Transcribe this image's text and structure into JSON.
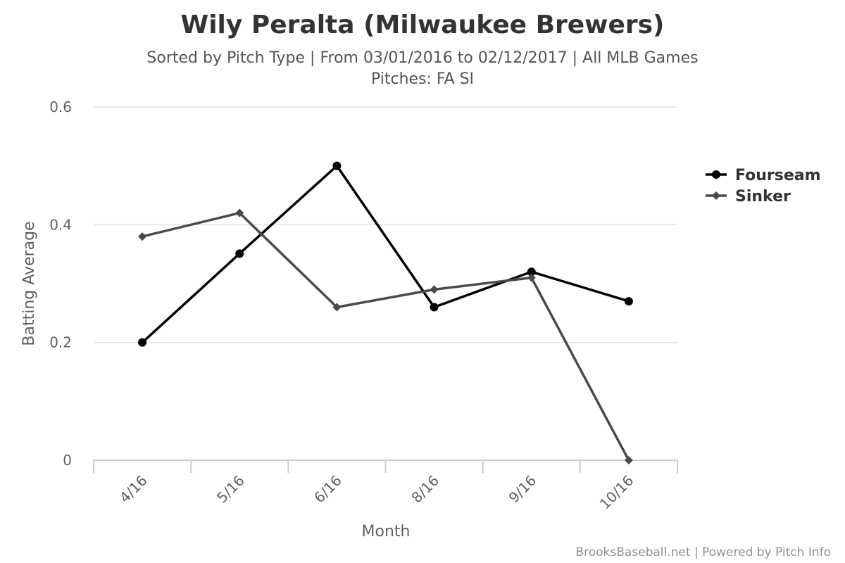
{
  "chart_data": {
    "type": "line",
    "title": "Wily Peralta (Milwaukee Brewers)",
    "subtitle_lines": [
      "Sorted by Pitch Type | From 03/01/2016 to 02/12/2017 | All MLB Games",
      "Pitches: FA SI"
    ],
    "xlabel": "Month",
    "ylabel": "Batting Average",
    "categories": [
      "4/16",
      "5/16",
      "6/16",
      "8/16",
      "9/16",
      "10/16"
    ],
    "y_ticks": [
      "0",
      "0.2",
      "0.4",
      "0.6"
    ],
    "ylim": [
      0,
      0.6
    ],
    "grid": true,
    "legend_position": "right",
    "series": [
      {
        "name": "Fourseam",
        "color": "#000000",
        "marker": "circle",
        "values": [
          0.2,
          0.351,
          0.5,
          0.26,
          0.32,
          0.27
        ]
      },
      {
        "name": "Sinker",
        "color": "#4a4a4a",
        "marker": "diamond",
        "values": [
          0.38,
          0.42,
          0.26,
          0.29,
          0.31,
          0.0
        ]
      }
    ]
  },
  "credits": "BrooksBaseball.net | Powered by Pitch Info"
}
